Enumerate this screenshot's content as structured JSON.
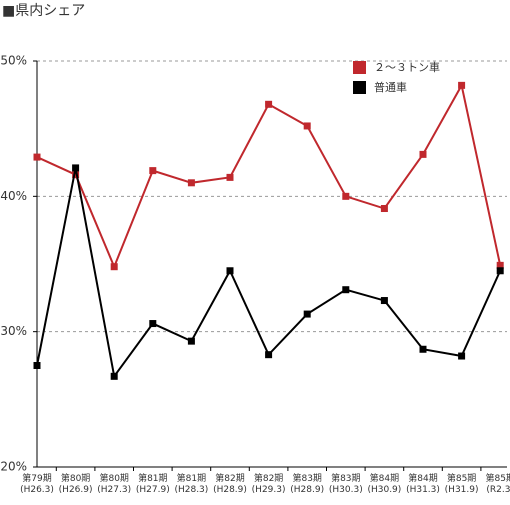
{
  "chart_data": {
    "type": "line",
    "title": "■県内シェア",
    "categories": [
      [
        "第79期",
        "(H26.3)"
      ],
      [
        "第80期",
        "(H26.9)"
      ],
      [
        "第80期",
        "(H27.3)"
      ],
      [
        "第81期",
        "(H27.9)"
      ],
      [
        "第81期",
        "(H28.3)"
      ],
      [
        "第82期",
        "(H28.9)"
      ],
      [
        "第82期",
        "(H29.3)"
      ],
      [
        "第83期",
        "(H28.9)"
      ],
      [
        "第83期",
        "(H30.3)"
      ],
      [
        "第84期",
        "(H30.9)"
      ],
      [
        "第84期",
        "(H31.3)"
      ],
      [
        "第85期",
        "(H31.9)"
      ],
      [
        "第85期",
        "(R2.3)"
      ]
    ],
    "series": [
      {
        "name": "２～３トン車",
        "color": "#c0282d",
        "values": [
          42.9,
          41.6,
          34.8,
          41.9,
          41.0,
          41.4,
          46.8,
          45.2,
          40.0,
          39.1,
          43.1,
          48.2,
          34.9
        ]
      },
      {
        "name": "普通車",
        "color": "#000000",
        "values": [
          27.5,
          42.1,
          26.7,
          30.6,
          29.3,
          34.5,
          28.3,
          31.3,
          33.1,
          32.3,
          28.7,
          28.2,
          34.5
        ]
      }
    ],
    "ylim": [
      20,
      50
    ],
    "yticks": [
      {
        "value": 20,
        "label": "20%"
      },
      {
        "value": 30,
        "label": "30%"
      },
      {
        "value": 40,
        "label": "40%"
      },
      {
        "value": 50,
        "label": "50%"
      }
    ],
    "grid": true
  }
}
